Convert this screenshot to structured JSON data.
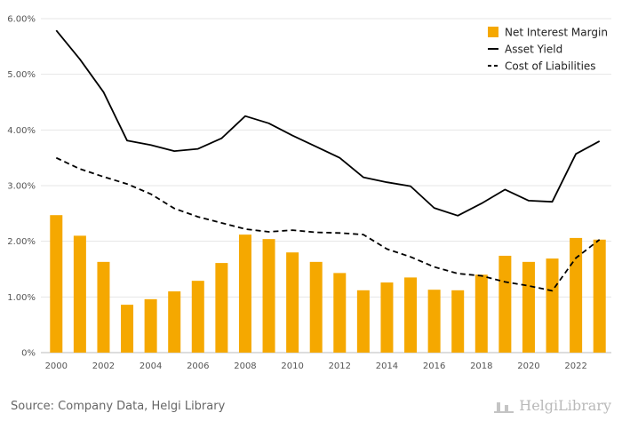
{
  "chart_data": {
    "type": "bar",
    "categories": [
      "2000",
      "2001",
      "2002",
      "2003",
      "2004",
      "2005",
      "2006",
      "2007",
      "2008",
      "2009",
      "2010",
      "2011",
      "2012",
      "2013",
      "2014",
      "2015",
      "2016",
      "2017",
      "2018",
      "2019",
      "2020",
      "2021",
      "2022",
      "2023"
    ],
    "x_tick_labels": [
      "2000",
      "2002",
      "2004",
      "2006",
      "2008",
      "2010",
      "2012",
      "2014",
      "2016",
      "2018",
      "2020",
      "2022"
    ],
    "y_tick_labels": [
      "0%",
      "1.00%",
      "2.00%",
      "3.00%",
      "4.00%",
      "5.00%",
      "6.00%"
    ],
    "ylim": [
      0,
      6.0
    ],
    "grid": "horizontal",
    "legend_position": "top-right",
    "series": [
      {
        "name": "Net Interest Margin",
        "type": "bar",
        "color": "#f5a800",
        "values": [
          2.47,
          2.1,
          1.63,
          0.86,
          0.96,
          1.1,
          1.29,
          1.61,
          2.12,
          2.04,
          1.8,
          1.63,
          1.43,
          1.12,
          1.26,
          1.35,
          1.13,
          1.12,
          1.4,
          1.74,
          1.63,
          1.69,
          2.06,
          2.03
        ]
      },
      {
        "name": "Asset Yield",
        "type": "line",
        "style": "solid",
        "color": "#000000",
        "values": [
          5.79,
          5.27,
          4.68,
          3.81,
          3.73,
          3.62,
          3.66,
          3.85,
          4.25,
          4.12,
          3.9,
          3.7,
          3.5,
          3.15,
          3.06,
          2.99,
          2.6,
          2.46,
          2.68,
          2.93,
          2.73,
          2.71,
          3.57,
          3.8
        ]
      },
      {
        "name": "Cost of Liabilities",
        "type": "line",
        "style": "dashed",
        "color": "#000000",
        "values": [
          3.5,
          3.3,
          3.16,
          3.03,
          2.85,
          2.59,
          2.44,
          2.33,
          2.22,
          2.17,
          2.2,
          2.16,
          2.15,
          2.12,
          1.86,
          1.72,
          1.54,
          1.42,
          1.38,
          1.27,
          1.2,
          1.11,
          1.7,
          2.03
        ]
      }
    ]
  },
  "footer": {
    "source": "Source: Company Data, Helgi Library",
    "logo": "HelgiLibrary"
  }
}
